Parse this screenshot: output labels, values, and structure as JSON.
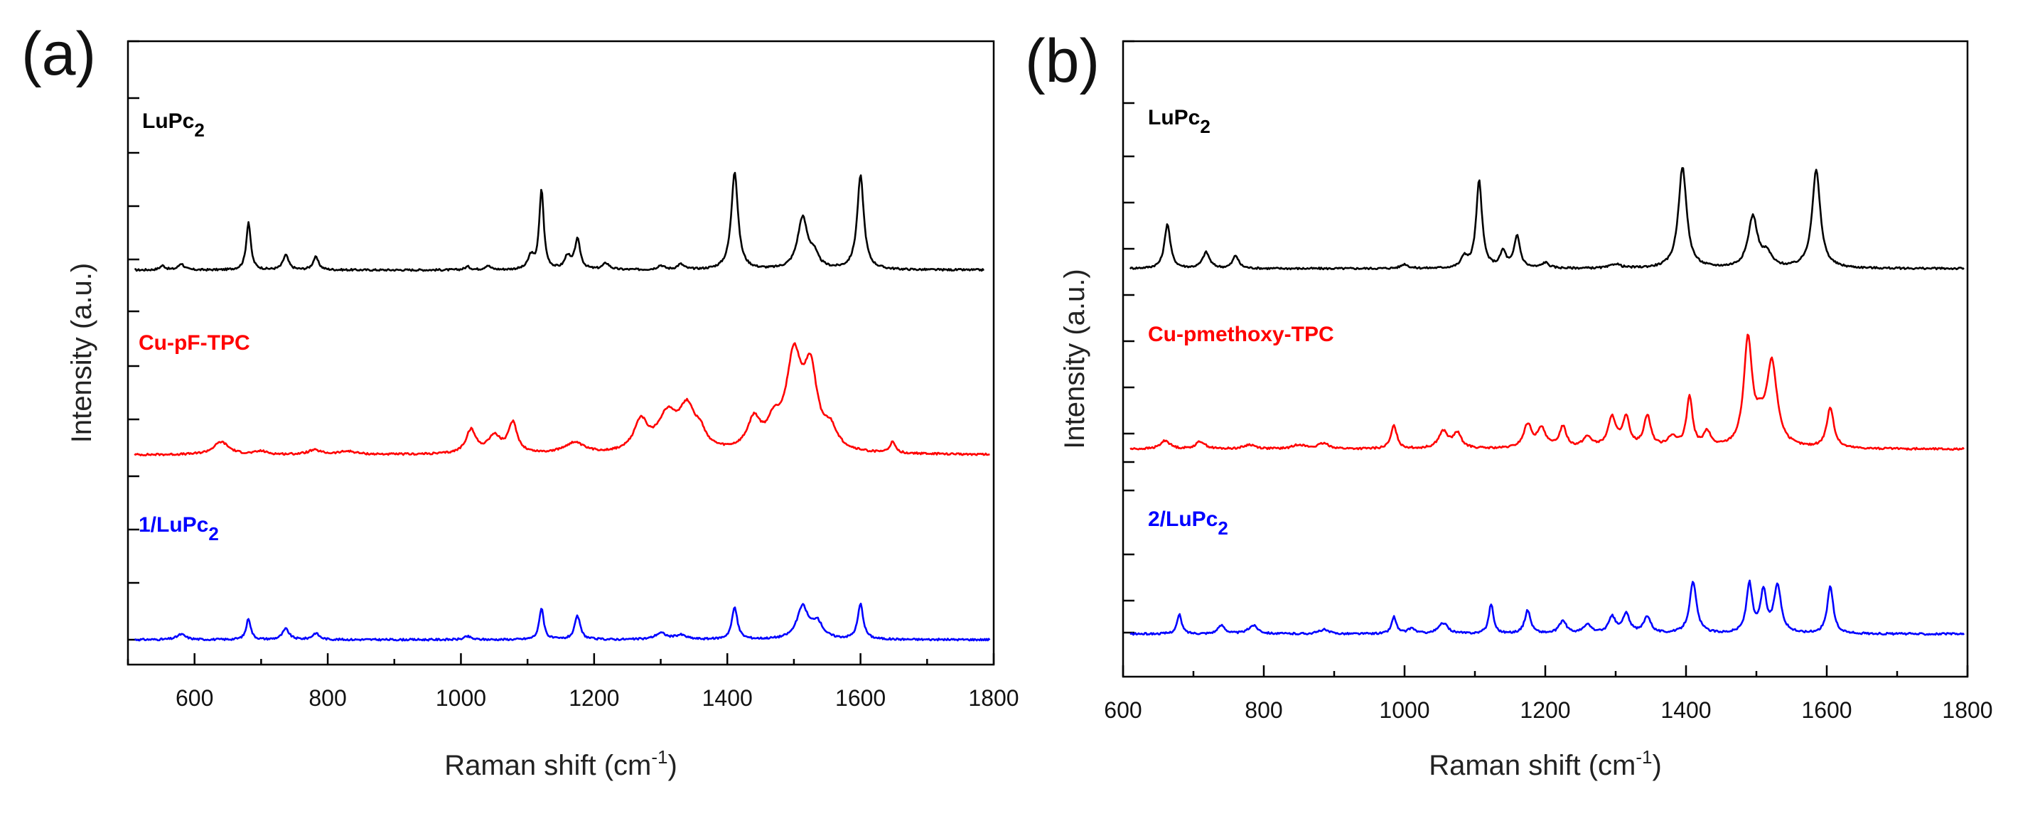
{
  "chart_data": [
    {
      "type": "line",
      "panel_label": "(a)",
      "xlabel": "Raman shift (cm",
      "xlabel_sup": "-1",
      "xlabel_end": ")",
      "ylabel": "Intensity (a.u.)",
      "xlim": [
        500,
        1800
      ],
      "xticks": [
        "600",
        "800",
        "1000",
        "1200",
        "1400",
        "1600",
        "1800"
      ],
      "grid": false,
      "series": [
        {
          "name": "LuPc",
          "sub": "2",
          "color": "#000000",
          "peaks": [
            [
              552,
              0.04,
              5
            ],
            [
              580,
              0.06,
              5
            ],
            [
              681,
              0.45,
              4
            ],
            [
              737,
              0.14,
              5
            ],
            [
              782,
              0.12,
              5
            ],
            [
              1010,
              0.03,
              5
            ],
            [
              1040,
              0.04,
              5
            ],
            [
              1105,
              0.12,
              5
            ],
            [
              1121,
              0.75,
              4
            ],
            [
              1160,
              0.12,
              5
            ],
            [
              1175,
              0.28,
              5
            ],
            [
              1218,
              0.06,
              6
            ],
            [
              1300,
              0.04,
              6
            ],
            [
              1330,
              0.05,
              6
            ],
            [
              1411,
              0.92,
              6
            ],
            [
              1513,
              0.48,
              9
            ],
            [
              1530,
              0.12,
              8
            ],
            [
              1600,
              0.88,
              6
            ]
          ]
        },
        {
          "name": "Cu-pF-TPC",
          "color": "#ff0000",
          "peaks": [
            [
              640,
              0.12,
              14
            ],
            [
              700,
              0.03,
              10
            ],
            [
              780,
              0.04,
              12
            ],
            [
              830,
              0.03,
              15
            ],
            [
              1015,
              0.22,
              9
            ],
            [
              1050,
              0.16,
              12
            ],
            [
              1078,
              0.28,
              8
            ],
            [
              1170,
              0.1,
              18
            ],
            [
              1270,
              0.28,
              12
            ],
            [
              1310,
              0.33,
              18
            ],
            [
              1340,
              0.38,
              15
            ],
            [
              1360,
              0.12,
              10
            ],
            [
              1440,
              0.28,
              12
            ],
            [
              1470,
              0.22,
              12
            ],
            [
              1500,
              0.85,
              14
            ],
            [
              1525,
              0.7,
              12
            ],
            [
              1555,
              0.18,
              12
            ],
            [
              1648,
              0.1,
              5
            ]
          ]
        },
        {
          "name": "1/LuPc",
          "sub": "2",
          "color": "#0000ff",
          "peaks": [
            [
              580,
              0.05,
              8
            ],
            [
              681,
              0.2,
              4
            ],
            [
              737,
              0.1,
              6
            ],
            [
              782,
              0.06,
              6
            ],
            [
              1010,
              0.03,
              6
            ],
            [
              1121,
              0.3,
              4
            ],
            [
              1175,
              0.22,
              5
            ],
            [
              1300,
              0.06,
              10
            ],
            [
              1330,
              0.04,
              10
            ],
            [
              1411,
              0.3,
              5
            ],
            [
              1513,
              0.3,
              10
            ],
            [
              1535,
              0.15,
              10
            ],
            [
              1600,
              0.33,
              5
            ]
          ]
        }
      ]
    },
    {
      "type": "line",
      "panel_label": "(b)",
      "xlabel": "Raman shift (cm",
      "xlabel_sup": "-1",
      "xlabel_end": ")",
      "ylabel": "Intensity (a.u.)",
      "xlim": [
        600,
        1800
      ],
      "xticks": [
        "600",
        "800",
        "1000",
        "1200",
        "1400",
        "1600",
        "1800"
      ],
      "grid": false,
      "series": [
        {
          "name": "LuPc",
          "sub": "2",
          "color": "#000000",
          "peaks": [
            [
              663,
              0.42,
              5
            ],
            [
              718,
              0.15,
              6
            ],
            [
              760,
              0.12,
              5
            ],
            [
              1000,
              0.04,
              6
            ],
            [
              1085,
              0.1,
              5
            ],
            [
              1106,
              0.82,
              5
            ],
            [
              1140,
              0.15,
              5
            ],
            [
              1160,
              0.3,
              5
            ],
            [
              1200,
              0.05,
              6
            ],
            [
              1300,
              0.04,
              8
            ],
            [
              1395,
              0.95,
              7
            ],
            [
              1495,
              0.48,
              8
            ],
            [
              1515,
              0.12,
              8
            ],
            [
              1585,
              0.92,
              7
            ]
          ]
        },
        {
          "name": "Cu-pmethoxy-TPC",
          "color": "#ff0000",
          "peaks": [
            [
              660,
              0.08,
              8
            ],
            [
              710,
              0.07,
              8
            ],
            [
              780,
              0.04,
              10
            ],
            [
              850,
              0.04,
              10
            ],
            [
              885,
              0.05,
              10
            ],
            [
              985,
              0.22,
              5
            ],
            [
              1055,
              0.16,
              8
            ],
            [
              1075,
              0.14,
              7
            ],
            [
              1175,
              0.22,
              7
            ],
            [
              1195,
              0.18,
              7
            ],
            [
              1225,
              0.2,
              6
            ],
            [
              1260,
              0.1,
              8
            ],
            [
              1295,
              0.28,
              7
            ],
            [
              1315,
              0.27,
              6
            ],
            [
              1345,
              0.3,
              6
            ],
            [
              1380,
              0.1,
              8
            ],
            [
              1405,
              0.48,
              5
            ],
            [
              1430,
              0.14,
              6
            ],
            [
              1488,
              1.0,
              7
            ],
            [
              1505,
              0.15,
              8
            ],
            [
              1522,
              0.78,
              9
            ],
            [
              1605,
              0.38,
              6
            ]
          ]
        },
        {
          "name": "2/LuPc",
          "sub": "2",
          "color": "#0000ff",
          "peaks": [
            [
              680,
              0.18,
              4
            ],
            [
              740,
              0.08,
              6
            ],
            [
              785,
              0.08,
              8
            ],
            [
              885,
              0.04,
              8
            ],
            [
              985,
              0.16,
              4
            ],
            [
              1010,
              0.05,
              6
            ],
            [
              1055,
              0.1,
              8
            ],
            [
              1123,
              0.28,
              4
            ],
            [
              1175,
              0.22,
              5
            ],
            [
              1225,
              0.12,
              6
            ],
            [
              1260,
              0.08,
              7
            ],
            [
              1295,
              0.15,
              6
            ],
            [
              1315,
              0.18,
              6
            ],
            [
              1345,
              0.16,
              6
            ],
            [
              1410,
              0.48,
              6
            ],
            [
              1490,
              0.46,
              5
            ],
            [
              1510,
              0.38,
              5
            ],
            [
              1530,
              0.45,
              6
            ],
            [
              1605,
              0.45,
              5
            ]
          ]
        }
      ]
    }
  ]
}
